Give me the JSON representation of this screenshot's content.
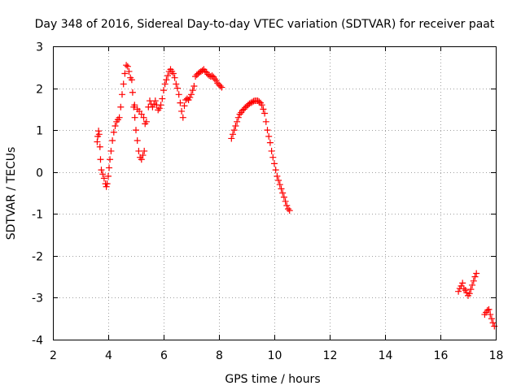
{
  "chart_data": {
    "type": "scatter",
    "title": "Day 348 of 2016, Sidereal Day-to-day VTEC variation (SDTVAR) for receiver paat",
    "xlabel": "GPS time / hours",
    "ylabel": "SDTVAR / TECUs",
    "xlim": [
      2,
      18
    ],
    "ylim": [
      -4,
      3
    ],
    "xticks": [
      2,
      4,
      6,
      8,
      10,
      12,
      14,
      16,
      18
    ],
    "yticks": [
      -4,
      -3,
      -2,
      -1,
      0,
      1,
      2,
      3
    ],
    "xtick_labels": [
      "2",
      "4",
      "6",
      "8",
      "10",
      "12",
      "14",
      "16",
      "18"
    ],
    "ytick_labels": [
      "-4",
      "-3",
      "-2",
      "-1",
      "0",
      "1",
      "2",
      "3"
    ],
    "grid": true,
    "marker": "+",
    "color": "#ff0000",
    "series": [
      {
        "values": [
          [
            3.6,
            0.72
          ],
          [
            3.62,
            0.85
          ],
          [
            3.65,
            0.98
          ],
          [
            3.67,
            0.9
          ],
          [
            3.7,
            0.6
          ],
          [
            3.72,
            0.3
          ],
          [
            3.75,
            0.05
          ],
          [
            3.8,
            -0.05
          ],
          [
            3.85,
            -0.15
          ],
          [
            3.9,
            -0.28
          ],
          [
            3.93,
            -0.35
          ],
          [
            3.96,
            -0.28
          ],
          [
            4.0,
            -0.1
          ],
          [
            4.03,
            0.1
          ],
          [
            4.06,
            0.3
          ],
          [
            4.1,
            0.5
          ],
          [
            4.15,
            0.75
          ],
          [
            4.2,
            0.95
          ],
          [
            4.25,
            1.1
          ],
          [
            4.3,
            1.2
          ],
          [
            4.35,
            1.25
          ],
          [
            4.4,
            1.3
          ],
          [
            4.45,
            1.55
          ],
          [
            4.5,
            1.85
          ],
          [
            4.55,
            2.1
          ],
          [
            4.6,
            2.35
          ],
          [
            4.65,
            2.55
          ],
          [
            4.7,
            2.52
          ],
          [
            4.75,
            2.4
          ],
          [
            4.8,
            2.25
          ],
          [
            4.85,
            2.2
          ],
          [
            4.88,
            1.9
          ],
          [
            4.92,
            1.55
          ],
          [
            4.96,
            1.3
          ],
          [
            5.0,
            1.0
          ],
          [
            5.05,
            0.75
          ],
          [
            5.1,
            0.5
          ],
          [
            5.15,
            0.35
          ],
          [
            5.2,
            0.3
          ],
          [
            5.25,
            0.4
          ],
          [
            5.3,
            0.5
          ],
          [
            4.95,
            1.6
          ],
          [
            5.05,
            1.5
          ],
          [
            5.12,
            1.45
          ],
          [
            5.2,
            1.38
          ],
          [
            5.28,
            1.3
          ],
          [
            5.33,
            1.15
          ],
          [
            5.38,
            1.2
          ],
          [
            5.45,
            1.55
          ],
          [
            5.5,
            1.7
          ],
          [
            5.55,
            1.62
          ],
          [
            5.6,
            1.55
          ],
          [
            5.65,
            1.62
          ],
          [
            5.7,
            1.7
          ],
          [
            5.75,
            1.6
          ],
          [
            5.8,
            1.48
          ],
          [
            5.85,
            1.52
          ],
          [
            5.9,
            1.6
          ],
          [
            5.95,
            1.75
          ],
          [
            6.0,
            1.95
          ],
          [
            6.05,
            2.1
          ],
          [
            6.1,
            2.2
          ],
          [
            6.15,
            2.3
          ],
          [
            6.2,
            2.4
          ],
          [
            6.25,
            2.45
          ],
          [
            6.3,
            2.4
          ],
          [
            6.35,
            2.35
          ],
          [
            6.4,
            2.25
          ],
          [
            6.45,
            2.1
          ],
          [
            6.5,
            2.0
          ],
          [
            6.55,
            1.85
          ],
          [
            6.6,
            1.65
          ],
          [
            6.65,
            1.45
          ],
          [
            6.7,
            1.3
          ],
          [
            6.75,
            1.58
          ],
          [
            6.8,
            1.72
          ],
          [
            6.85,
            1.75
          ],
          [
            6.9,
            1.72
          ],
          [
            6.95,
            1.78
          ],
          [
            7.0,
            1.85
          ],
          [
            7.05,
            1.95
          ],
          [
            7.1,
            2.05
          ],
          [
            7.15,
            2.28
          ],
          [
            7.2,
            2.32
          ],
          [
            7.25,
            2.35
          ],
          [
            7.3,
            2.38
          ],
          [
            7.35,
            2.4
          ],
          [
            7.4,
            2.42
          ],
          [
            7.45,
            2.45
          ],
          [
            7.5,
            2.4
          ],
          [
            7.55,
            2.38
          ],
          [
            7.6,
            2.33
          ],
          [
            7.65,
            2.3
          ],
          [
            7.7,
            2.28
          ],
          [
            7.75,
            2.3
          ],
          [
            7.8,
            2.27
          ],
          [
            7.85,
            2.22
          ],
          [
            7.9,
            2.18
          ],
          [
            7.95,
            2.12
          ],
          [
            8.0,
            2.08
          ],
          [
            8.05,
            2.05
          ],
          [
            8.1,
            2.02
          ],
          [
            8.45,
            0.8
          ],
          [
            8.5,
            0.9
          ],
          [
            8.55,
            1.0
          ],
          [
            8.6,
            1.1
          ],
          [
            8.65,
            1.2
          ],
          [
            8.7,
            1.3
          ],
          [
            8.75,
            1.38
          ],
          [
            8.8,
            1.42
          ],
          [
            8.85,
            1.47
          ],
          [
            8.9,
            1.5
          ],
          [
            8.95,
            1.54
          ],
          [
            9.0,
            1.57
          ],
          [
            9.05,
            1.6
          ],
          [
            9.1,
            1.63
          ],
          [
            9.15,
            1.65
          ],
          [
            9.2,
            1.67
          ],
          [
            9.25,
            1.69
          ],
          [
            9.3,
            1.7
          ],
          [
            9.35,
            1.7
          ],
          [
            9.4,
            1.7
          ],
          [
            9.45,
            1.68
          ],
          [
            9.5,
            1.65
          ],
          [
            9.55,
            1.6
          ],
          [
            9.6,
            1.5
          ],
          [
            9.65,
            1.4
          ],
          [
            9.7,
            1.2
          ],
          [
            9.75,
            1.0
          ],
          [
            9.8,
            0.85
          ],
          [
            9.85,
            0.7
          ],
          [
            9.9,
            0.5
          ],
          [
            9.95,
            0.35
          ],
          [
            10.0,
            0.2
          ],
          [
            10.05,
            0.05
          ],
          [
            10.1,
            -0.1
          ],
          [
            10.15,
            -0.2
          ],
          [
            10.2,
            -0.3
          ],
          [
            10.25,
            -0.4
          ],
          [
            10.3,
            -0.5
          ],
          [
            10.35,
            -0.6
          ],
          [
            10.4,
            -0.7
          ],
          [
            10.45,
            -0.8
          ],
          [
            10.5,
            -0.88
          ],
          [
            10.55,
            -0.92
          ],
          [
            16.65,
            -2.85
          ],
          [
            16.7,
            -2.78
          ],
          [
            16.75,
            -2.72
          ],
          [
            16.8,
            -2.65
          ],
          [
            16.85,
            -2.78
          ],
          [
            16.9,
            -2.82
          ],
          [
            16.95,
            -2.88
          ],
          [
            17.0,
            -2.95
          ],
          [
            17.05,
            -2.9
          ],
          [
            17.1,
            -2.8
          ],
          [
            17.15,
            -2.7
          ],
          [
            17.2,
            -2.6
          ],
          [
            17.25,
            -2.5
          ],
          [
            17.3,
            -2.42
          ],
          [
            17.6,
            -3.4
          ],
          [
            17.65,
            -3.35
          ],
          [
            17.7,
            -3.3
          ],
          [
            17.75,
            -3.28
          ],
          [
            17.8,
            -3.4
          ],
          [
            17.85,
            -3.5
          ],
          [
            17.9,
            -3.6
          ],
          [
            17.95,
            -3.68
          ]
        ]
      }
    ]
  }
}
